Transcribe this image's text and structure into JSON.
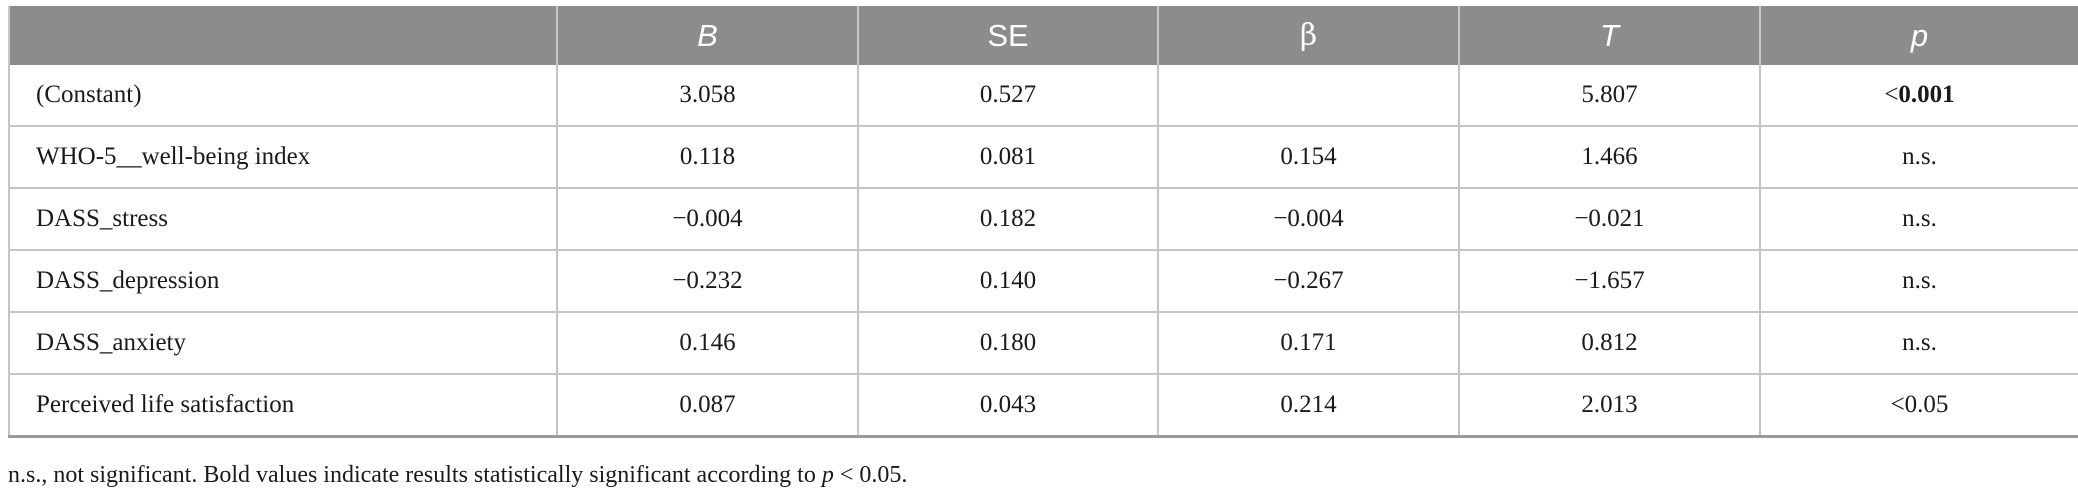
{
  "table": {
    "headers": [
      "",
      "B",
      "SE",
      "β",
      "T",
      "p"
    ],
    "rows": [
      {
        "label": "(Constant)",
        "b": "3.058",
        "se": "0.527",
        "beta": "",
        "t": "5.807",
        "p_prefix": "<",
        "p_value": "0.001"
      },
      {
        "label": "WHO-5__well-being index",
        "b": "0.118",
        "se": "0.081",
        "beta": "0.154",
        "t": "1.466",
        "p": "n.s."
      },
      {
        "label": "DASS_stress",
        "b": "−0.004",
        "se": "0.182",
        "beta": "−0.004",
        "t": "−0.021",
        "p": "n.s."
      },
      {
        "label": "DASS_depression",
        "b": "−0.232",
        "se": "0.140",
        "beta": "−0.267",
        "t": "−1.657",
        "p": "n.s."
      },
      {
        "label": "DASS_anxiety",
        "b": "0.146",
        "se": "0.180",
        "beta": "0.171",
        "t": "0.812",
        "p": "n.s."
      },
      {
        "label": "Perceived life satisfaction",
        "b": "0.087",
        "se": "0.043",
        "beta": "0.214",
        "t": "2.013",
        "p": "<0.05"
      }
    ]
  },
  "footnote": {
    "before": "n.s., not significant. Bold values indicate results statistically significant according to ",
    "p_symbol": "p",
    "after": " < 0.05."
  },
  "colors": {
    "header_bg": "#8c8c8c",
    "header_text": "#ffffff",
    "grid": "#c4c4c4"
  }
}
